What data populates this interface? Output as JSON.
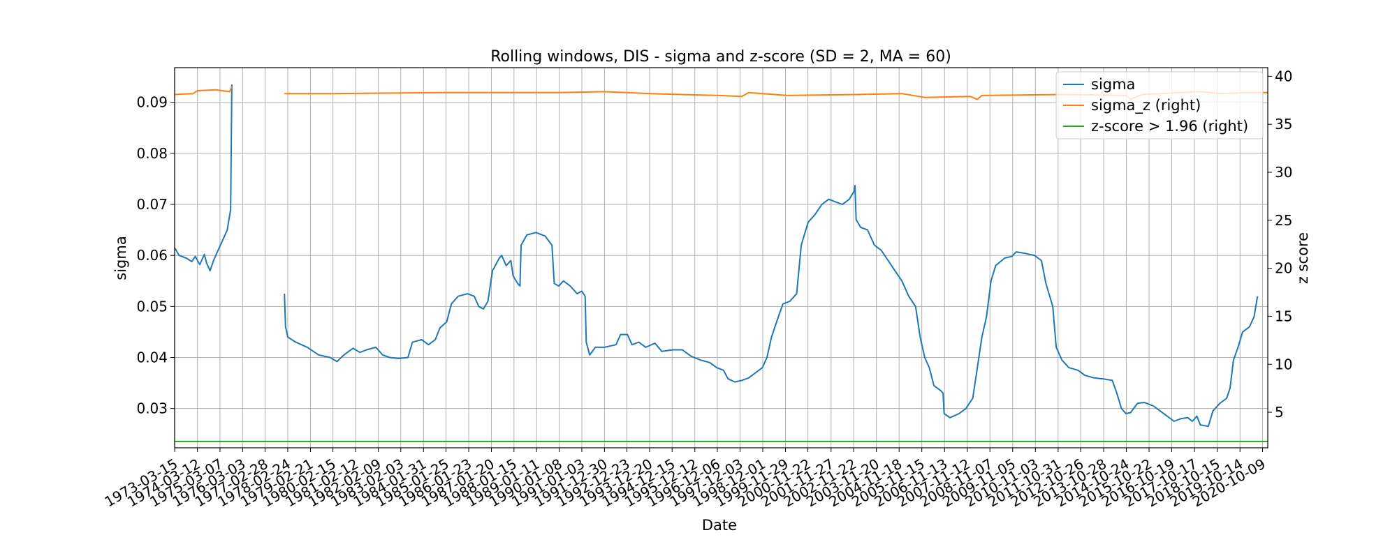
{
  "chart_data": {
    "type": "line",
    "title": "Rolling windows, DIS - sigma and z-score (SD = 2, MA = 60)",
    "xlabel": "Date",
    "ylabel": "sigma",
    "ylabel_right": "z score",
    "ylim": [
      0.0223,
      0.0968
    ],
    "ylim_right": [
      1.3,
      40.9
    ],
    "xlim": [
      1973.2,
      2021.0
    ],
    "yticks": [
      "0.03",
      "0.04",
      "0.05",
      "0.06",
      "0.07",
      "0.08",
      "0.09"
    ],
    "yticks_right": [
      "5",
      "10",
      "15",
      "20",
      "25",
      "30",
      "35",
      "40"
    ],
    "xticks": [
      "1973-03-15",
      "1974-03-12",
      "1975-03-07",
      "1976-03-03",
      "1977-02-28",
      "1978-02-24",
      "1979-02-21",
      "1980-02-15",
      "1981-02-12",
      "1982-02-09",
      "1983-02-03",
      "1984-01-31",
      "1985-01-25",
      "1986-01-23",
      "1987-01-20",
      "1988-01-15",
      "1989-01-11",
      "1990-01-08",
      "1991-01-03",
      "1991-12-30",
      "1992-12-23",
      "1993-12-20",
      "1994-12-15",
      "1995-12-12",
      "1996-12-06",
      "1997-12-03",
      "1998-12-01",
      "1999-11-29",
      "2000-11-22",
      "2001-11-27",
      "2002-11-22",
      "2003-11-20",
      "2004-11-18",
      "2005-11-15",
      "2006-11-13",
      "2007-11-12",
      "2008-11-07",
      "2009-11-05",
      "2010-11-03",
      "2011-10-31",
      "2012-10-26",
      "2013-10-28",
      "2014-10-24",
      "2015-10-22",
      "2016-10-19",
      "2017-10-17",
      "2018-10-15",
      "2019-10-14",
      "2020-10-09"
    ],
    "grid": true,
    "legend_position": "top-right",
    "series": [
      {
        "name": "sigma",
        "axis": "left",
        "color": "#1f77b4",
        "segments": [
          [
            [
              1973.2,
              0.0615
            ],
            [
              1973.4,
              0.06
            ],
            [
              1973.7,
              0.0595
            ],
            [
              1973.95,
              0.0588
            ],
            [
              1974.1,
              0.0598
            ],
            [
              1974.3,
              0.0582
            ],
            [
              1974.5,
              0.0602
            ],
            [
              1974.6,
              0.0585
            ],
            [
              1974.75,
              0.057
            ],
            [
              1974.9,
              0.059
            ],
            [
              1975.1,
              0.061
            ],
            [
              1975.3,
              0.063
            ],
            [
              1975.5,
              0.065
            ],
            [
              1975.65,
              0.069
            ],
            [
              1975.7,
              0.0935
            ]
          ],
          [
            [
              1978.0,
              0.0525
            ],
            [
              1978.05,
              0.046
            ],
            [
              1978.15,
              0.044
            ],
            [
              1978.5,
              0.043
            ],
            [
              1979.0,
              0.042
            ],
            [
              1979.5,
              0.0405
            ],
            [
              1980.0,
              0.04
            ],
            [
              1980.3,
              0.0392
            ],
            [
              1980.6,
              0.0405
            ],
            [
              1981.0,
              0.0418
            ],
            [
              1981.3,
              0.041
            ],
            [
              1981.6,
              0.0415
            ],
            [
              1982.0,
              0.042
            ],
            [
              1982.3,
              0.0405
            ],
            [
              1982.6,
              0.04
            ],
            [
              1983.0,
              0.0398
            ],
            [
              1983.4,
              0.04
            ],
            [
              1983.6,
              0.043
            ],
            [
              1984.0,
              0.0435
            ],
            [
              1984.3,
              0.0425
            ],
            [
              1984.6,
              0.0435
            ],
            [
              1984.8,
              0.0458
            ],
            [
              1985.1,
              0.047
            ],
            [
              1985.3,
              0.0505
            ],
            [
              1985.6,
              0.052
            ],
            [
              1986.0,
              0.0525
            ],
            [
              1986.3,
              0.052
            ],
            [
              1986.5,
              0.05
            ],
            [
              1986.7,
              0.0495
            ],
            [
              1986.9,
              0.051
            ],
            [
              1987.1,
              0.057
            ],
            [
              1987.4,
              0.0595
            ],
            [
              1987.5,
              0.06
            ],
            [
              1987.7,
              0.058
            ],
            [
              1987.9,
              0.059
            ],
            [
              1988.0,
              0.056
            ],
            [
              1988.2,
              0.0545
            ],
            [
              1988.3,
              0.054
            ],
            [
              1988.35,
              0.062
            ],
            [
              1988.6,
              0.064
            ],
            [
              1989.0,
              0.0645
            ],
            [
              1989.4,
              0.0638
            ],
            [
              1989.7,
              0.062
            ],
            [
              1989.8,
              0.0545
            ],
            [
              1990.0,
              0.054
            ],
            [
              1990.2,
              0.055
            ],
            [
              1990.5,
              0.054
            ],
            [
              1990.8,
              0.0525
            ],
            [
              1991.0,
              0.053
            ],
            [
              1991.15,
              0.052
            ],
            [
              1991.2,
              0.043
            ],
            [
              1991.35,
              0.0405
            ],
            [
              1991.6,
              0.042
            ],
            [
              1992.0,
              0.042
            ],
            [
              1992.5,
              0.0425
            ],
            [
              1992.7,
              0.0445
            ],
            [
              1993.0,
              0.0445
            ],
            [
              1993.2,
              0.0425
            ],
            [
              1993.5,
              0.043
            ],
            [
              1993.8,
              0.042
            ],
            [
              1994.2,
              0.0428
            ],
            [
              1994.5,
              0.0412
            ],
            [
              1995.0,
              0.0415
            ],
            [
              1995.4,
              0.0415
            ],
            [
              1995.8,
              0.0402
            ],
            [
              1996.2,
              0.0395
            ],
            [
              1996.6,
              0.039
            ],
            [
              1996.9,
              0.038
            ],
            [
              1997.2,
              0.0375
            ],
            [
              1997.4,
              0.0358
            ],
            [
              1997.7,
              0.0352
            ],
            [
              1998.0,
              0.0355
            ],
            [
              1998.3,
              0.036
            ],
            [
              1998.6,
              0.037
            ],
            [
              1998.9,
              0.038
            ],
            [
              1999.1,
              0.04
            ],
            [
              1999.3,
              0.044
            ],
            [
              1999.6,
              0.048
            ],
            [
              1999.8,
              0.0505
            ],
            [
              2000.1,
              0.051
            ],
            [
              2000.4,
              0.0525
            ],
            [
              2000.6,
              0.062
            ],
            [
              2000.9,
              0.0665
            ],
            [
              2001.2,
              0.068
            ],
            [
              2001.5,
              0.07
            ],
            [
              2001.8,
              0.071
            ],
            [
              2002.1,
              0.0705
            ],
            [
              2002.4,
              0.07
            ],
            [
              2002.7,
              0.071
            ],
            [
              2002.9,
              0.0725
            ],
            [
              2002.95,
              0.0737
            ],
            [
              2003.0,
              0.067
            ],
            [
              2003.2,
              0.0655
            ],
            [
              2003.5,
              0.065
            ],
            [
              2003.8,
              0.062
            ],
            [
              2004.1,
              0.061
            ],
            [
              2004.4,
              0.059
            ],
            [
              2004.7,
              0.057
            ],
            [
              2005.0,
              0.055
            ],
            [
              2005.3,
              0.052
            ],
            [
              2005.6,
              0.05
            ],
            [
              2005.8,
              0.044
            ],
            [
              2006.0,
              0.04
            ],
            [
              2006.2,
              0.038
            ],
            [
              2006.4,
              0.0345
            ],
            [
              2006.7,
              0.0335
            ],
            [
              2006.8,
              0.033
            ],
            [
              2006.85,
              0.029
            ],
            [
              2007.1,
              0.0282
            ],
            [
              2007.5,
              0.029
            ],
            [
              2007.8,
              0.03
            ],
            [
              2008.1,
              0.032
            ],
            [
              2008.3,
              0.038
            ],
            [
              2008.5,
              0.044
            ],
            [
              2008.7,
              0.048
            ],
            [
              2008.9,
              0.055
            ],
            [
              2009.1,
              0.058
            ],
            [
              2009.5,
              0.0595
            ],
            [
              2009.8,
              0.0598
            ],
            [
              2010.0,
              0.0607
            ],
            [
              2010.4,
              0.0604
            ],
            [
              2010.8,
              0.06
            ],
            [
              2011.1,
              0.059
            ],
            [
              2011.3,
              0.0545
            ],
            [
              2011.6,
              0.05
            ],
            [
              2011.75,
              0.042
            ],
            [
              2012.0,
              0.0395
            ],
            [
              2012.3,
              0.038
            ],
            [
              2012.7,
              0.0375
            ],
            [
              2013.0,
              0.0365
            ],
            [
              2013.4,
              0.036
            ],
            [
              2013.8,
              0.0358
            ],
            [
              2014.2,
              0.0355
            ],
            [
              2014.4,
              0.033
            ],
            [
              2014.6,
              0.03
            ],
            [
              2014.8,
              0.029
            ],
            [
              2015.0,
              0.0292
            ],
            [
              2015.3,
              0.031
            ],
            [
              2015.6,
              0.0312
            ],
            [
              2016.0,
              0.0305
            ],
            [
              2016.3,
              0.0295
            ],
            [
              2016.6,
              0.0285
            ],
            [
              2016.9,
              0.0275
            ],
            [
              2017.2,
              0.028
            ],
            [
              2017.5,
              0.0282
            ],
            [
              2017.7,
              0.0275
            ],
            [
              2017.9,
              0.0285
            ],
            [
              2018.05,
              0.0268
            ],
            [
              2018.4,
              0.0265
            ],
            [
              2018.6,
              0.0295
            ],
            [
              2018.9,
              0.031
            ],
            [
              2019.2,
              0.032
            ],
            [
              2019.35,
              0.034
            ],
            [
              2019.5,
              0.0395
            ],
            [
              2019.7,
              0.042
            ],
            [
              2019.9,
              0.045
            ],
            [
              2020.2,
              0.046
            ],
            [
              2020.4,
              0.048
            ],
            [
              2020.55,
              0.052
            ]
          ]
        ]
      },
      {
        "name": "sigma_z (right)",
        "axis": "right",
        "color": "#ff7f0e",
        "segments": [
          [
            [
              1973.2,
              38.1
            ],
            [
              1974.0,
              38.2
            ],
            [
              1974.2,
              38.5
            ],
            [
              1975.0,
              38.6
            ],
            [
              1975.6,
              38.4
            ],
            [
              1975.7,
              38.9
            ]
          ],
          [
            [
              1978.0,
              38.2
            ],
            [
              1980.0,
              38.2
            ],
            [
              1985.0,
              38.3
            ],
            [
              1990.0,
              38.3
            ],
            [
              1992.0,
              38.4
            ],
            [
              1994.0,
              38.2
            ],
            [
              1997.0,
              38.0
            ],
            [
              1998.0,
              37.9
            ],
            [
              1998.3,
              38.3
            ],
            [
              2000.0,
              38.0
            ],
            [
              2003.0,
              38.1
            ],
            [
              2005.0,
              38.2
            ],
            [
              2006.0,
              37.8
            ],
            [
              2008.0,
              37.9
            ],
            [
              2008.3,
              37.6
            ],
            [
              2008.5,
              38.0
            ],
            [
              2012.0,
              38.1
            ],
            [
              2014.8,
              38.0
            ],
            [
              2015.0,
              37.6
            ],
            [
              2015.5,
              38.1
            ],
            [
              2018.0,
              38.4
            ],
            [
              2019.0,
              38.2
            ],
            [
              2020.0,
              38.3
            ],
            [
              2021.0,
              38.3
            ]
          ]
        ]
      },
      {
        "name": "z-score > 1.96 (right)",
        "axis": "right",
        "color": "#2ca02c",
        "segments": [
          [
            [
              1973.2,
              1.96
            ],
            [
              2021.0,
              1.96
            ]
          ]
        ]
      }
    ]
  }
}
